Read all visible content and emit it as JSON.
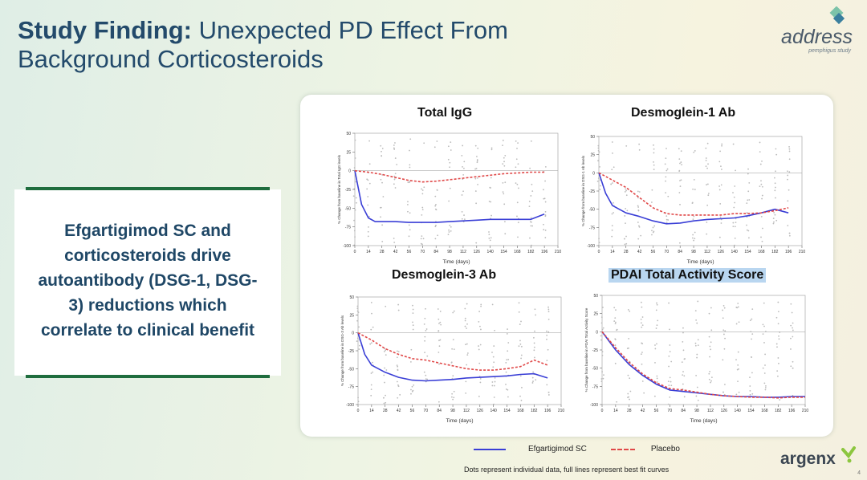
{
  "slide": {
    "title_bold": "Study Finding:",
    "title_rest_line1": " Unexpected PD Effect From",
    "title_line2": "Background Corticosteroids",
    "page_number": "4"
  },
  "logo": {
    "word": "address",
    "sub": "pemphigus study",
    "accent_colors": [
      "#7cc3a9",
      "#3a7f9e"
    ]
  },
  "callout": {
    "lines": [
      "Efgartigimod SC and",
      "corticosteroids drive",
      "autoantibody (DSG-1, DSG-",
      "3) reductions which",
      "correlate to clinical benefit"
    ]
  },
  "legend": {
    "efg": "Efgartigimod SC",
    "placebo": "Placebo"
  },
  "footnote": "Dots represent individual data, full lines represent best fit curves",
  "brand": {
    "name": "argenx",
    "mark_color": "#8cc63f"
  },
  "colors": {
    "efg": "#3a3fd6",
    "placebo": "#e04848",
    "highlight": "#b9d6f0"
  },
  "chart_data": [
    {
      "type": "line",
      "title": "Total IgG",
      "xlabel": "Time (days)",
      "ylabel": "% Change from baseline in Total IgG levels",
      "xlim": [
        0,
        210
      ],
      "ylim": [
        -100,
        50
      ],
      "xticks": [
        0,
        14,
        28,
        42,
        56,
        70,
        84,
        98,
        112,
        126,
        140,
        154,
        168,
        182,
        196,
        210
      ],
      "yticks": [
        50,
        25,
        0,
        -25,
        -50,
        -75,
        -100
      ],
      "series": [
        {
          "name": "Efgartigimod SC",
          "x": [
            0,
            7,
            14,
            21,
            28,
            42,
            56,
            70,
            84,
            98,
            112,
            126,
            140,
            154,
            168,
            182,
            196
          ],
          "y": [
            0,
            -45,
            -63,
            -68,
            -68,
            -68,
            -69,
            -69,
            -69,
            -68,
            -67,
            -66,
            -65,
            -65,
            -65,
            -65,
            -58
          ]
        },
        {
          "name": "Placebo",
          "x": [
            0,
            14,
            28,
            42,
            56,
            70,
            84,
            98,
            112,
            126,
            140,
            154,
            168,
            182,
            196
          ],
          "y": [
            0,
            -2,
            -5,
            -9,
            -13,
            -15,
            -14,
            -12,
            -10,
            -8,
            -6,
            -4,
            -3,
            -2,
            -2
          ]
        }
      ]
    },
    {
      "type": "line",
      "title": "Desmoglein-1 Ab",
      "xlabel": "Time (days)",
      "ylabel": "% Change from baseline in DSG-1 Ab levels",
      "xlim": [
        0,
        210
      ],
      "ylim": [
        -100,
        50
      ],
      "xticks": [
        0,
        14,
        28,
        42,
        56,
        70,
        84,
        98,
        112,
        126,
        140,
        154,
        168,
        182,
        196,
        210
      ],
      "yticks": [
        50,
        25,
        0,
        -25,
        -50,
        -75,
        -100
      ],
      "series": [
        {
          "name": "Efgartigimod SC",
          "x": [
            0,
            7,
            14,
            28,
            42,
            56,
            70,
            84,
            98,
            112,
            126,
            140,
            154,
            168,
            182,
            196
          ],
          "y": [
            0,
            -28,
            -45,
            -55,
            -60,
            -66,
            -70,
            -69,
            -66,
            -64,
            -63,
            -62,
            -59,
            -55,
            -50,
            -55
          ]
        },
        {
          "name": "Placebo",
          "x": [
            0,
            14,
            28,
            42,
            56,
            70,
            84,
            98,
            112,
            126,
            140,
            154,
            168,
            182,
            196
          ],
          "y": [
            0,
            -10,
            -20,
            -34,
            -48,
            -56,
            -58,
            -58,
            -58,
            -58,
            -56,
            -56,
            -55,
            -52,
            -48
          ]
        }
      ]
    },
    {
      "type": "line",
      "title": "Desmoglein-3 Ab",
      "xlabel": "Time (days)",
      "ylabel": "% Change from baseline in DSG-3 Ab levels",
      "xlim": [
        0,
        210
      ],
      "ylim": [
        -100,
        50
      ],
      "xticks": [
        0,
        14,
        28,
        42,
        56,
        70,
        84,
        98,
        112,
        126,
        140,
        154,
        168,
        182,
        196,
        210
      ],
      "yticks": [
        50,
        25,
        0,
        -25,
        -50,
        -75,
        -100
      ],
      "series": [
        {
          "name": "Efgartigimod SC",
          "x": [
            0,
            7,
            14,
            28,
            42,
            56,
            70,
            84,
            98,
            112,
            126,
            140,
            154,
            168,
            182,
            196
          ],
          "y": [
            0,
            -30,
            -45,
            -55,
            -62,
            -66,
            -67,
            -66,
            -65,
            -63,
            -62,
            -61,
            -60,
            -58,
            -57,
            -63
          ]
        },
        {
          "name": "Placebo",
          "x": [
            0,
            14,
            28,
            42,
            56,
            70,
            84,
            98,
            112,
            126,
            140,
            154,
            168,
            182,
            196
          ],
          "y": [
            0,
            -10,
            -22,
            -30,
            -36,
            -38,
            -42,
            -46,
            -50,
            -52,
            -52,
            -50,
            -47,
            -38,
            -45
          ]
        }
      ]
    },
    {
      "type": "line",
      "title": "PDAI Total Activity Score",
      "xlabel": "Time (days)",
      "ylabel": "% Change from baseline in PDAI Total Activity Score",
      "xlim": [
        0,
        210
      ],
      "ylim": [
        -100,
        50
      ],
      "xticks": [
        0,
        14,
        28,
        42,
        56,
        70,
        84,
        98,
        112,
        126,
        140,
        154,
        168,
        182,
        196,
        210
      ],
      "yticks": [
        50,
        25,
        0,
        -25,
        -50,
        -75,
        -100
      ],
      "series": [
        {
          "name": "Efgartigimod SC",
          "x": [
            0,
            14,
            28,
            42,
            56,
            70,
            84,
            98,
            112,
            126,
            140,
            154,
            168,
            182,
            196,
            210
          ],
          "y": [
            0,
            -25,
            -45,
            -60,
            -72,
            -80,
            -82,
            -84,
            -86,
            -88,
            -89,
            -89,
            -90,
            -90,
            -89,
            -89
          ]
        },
        {
          "name": "Placebo",
          "x": [
            0,
            14,
            28,
            42,
            56,
            70,
            84,
            98,
            112,
            126,
            140,
            154,
            168,
            182,
            196,
            210
          ],
          "y": [
            0,
            -22,
            -42,
            -58,
            -70,
            -78,
            -80,
            -83,
            -86,
            -88,
            -89,
            -90,
            -90,
            -91,
            -90,
            -90
          ]
        }
      ]
    }
  ]
}
